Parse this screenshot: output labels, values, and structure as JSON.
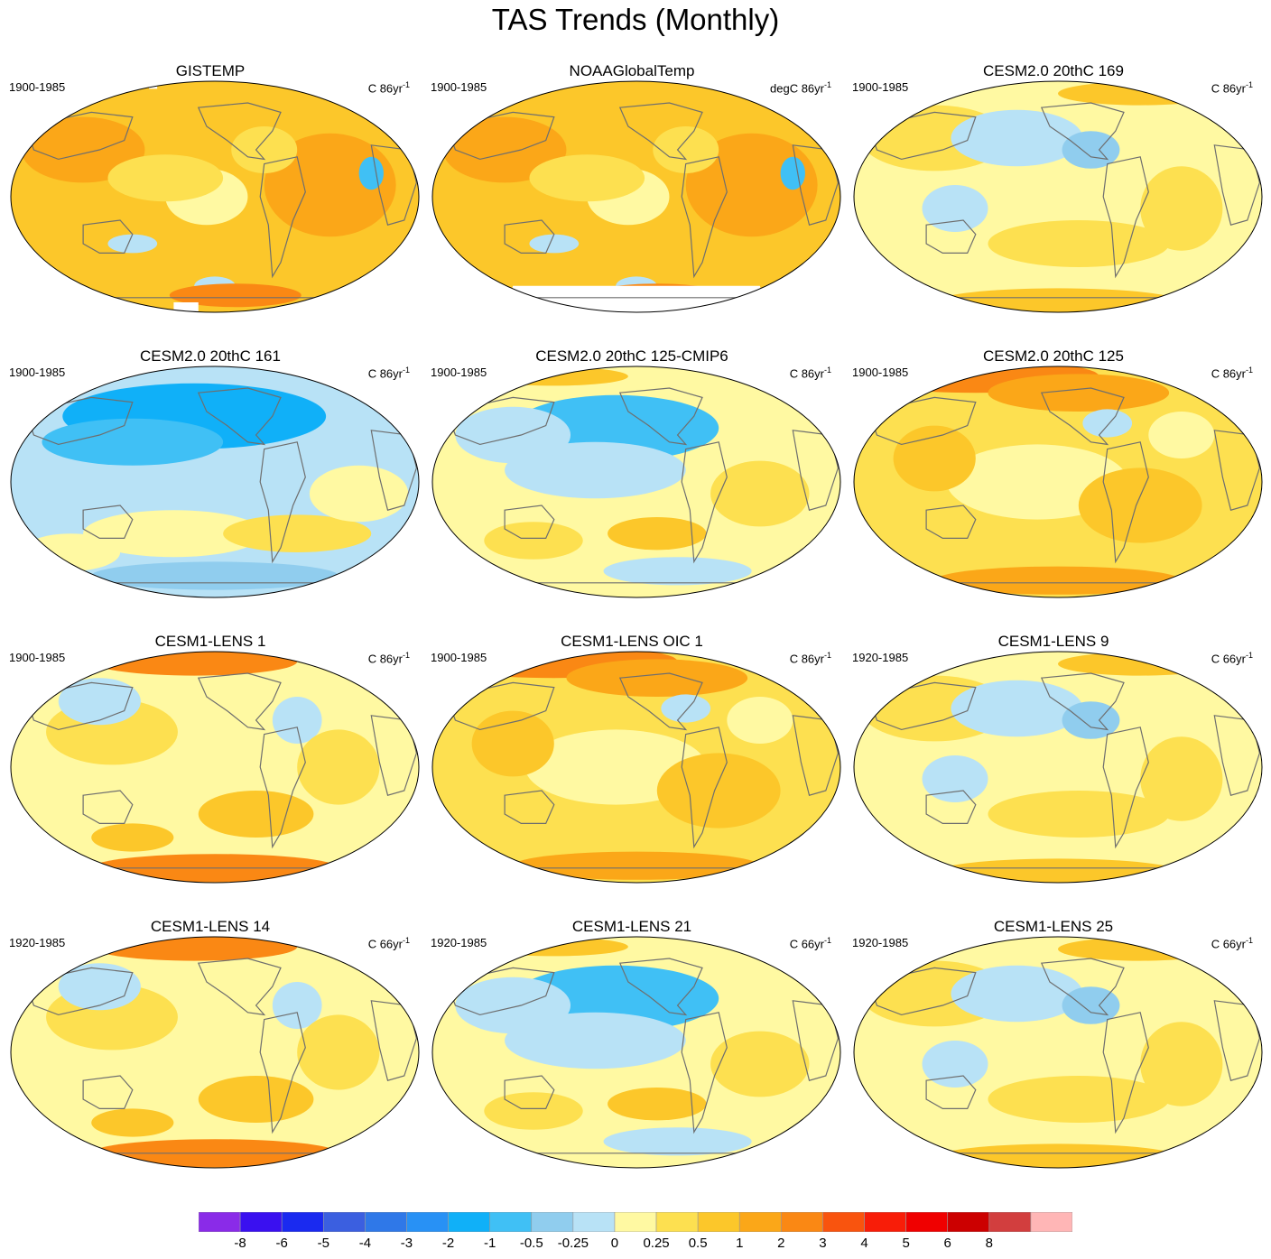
{
  "title": "TAS Trends (Monthly)",
  "panels": [
    {
      "title": "GISTEMP",
      "period": "1900-1985",
      "units_prefix": "C 86yr",
      "units_sup": "-1",
      "style": "obs_warm",
      "missing": "polar"
    },
    {
      "title": "NOAAGlobalTemp",
      "period": "1900-1985",
      "units_prefix": "degC 86yr",
      "units_sup": "-1",
      "style": "obs_warm",
      "missing": "south"
    },
    {
      "title": "CESM2.0 20thC 169",
      "period": "1900-1985",
      "units_prefix": "C 86yr",
      "units_sup": "-1",
      "style": "mixed_light",
      "missing": "none"
    },
    {
      "title": "CESM2.0 20thC 161",
      "period": "1900-1985",
      "units_prefix": "C 86yr",
      "units_sup": "-1",
      "style": "cool",
      "missing": "none"
    },
    {
      "title": "CESM2.0 20thC 125-CMIP6",
      "period": "1900-1985",
      "units_prefix": "C 86yr",
      "units_sup": "-1",
      "style": "mixed_cool",
      "missing": "none"
    },
    {
      "title": "CESM2.0 20thC 125",
      "period": "1900-1985",
      "units_prefix": "C 86yr",
      "units_sup": "-1",
      "style": "warm_north",
      "missing": "none"
    },
    {
      "title": "CESM1-LENS 1",
      "period": "1900-1985",
      "units_prefix": "C 86yr",
      "units_sup": "-1",
      "style": "mixed_warm",
      "missing": "none"
    },
    {
      "title": "CESM1-LENS OIC 1",
      "period": "1900-1985",
      "units_prefix": "C 86yr",
      "units_sup": "-1",
      "style": "warm_north",
      "missing": "none"
    },
    {
      "title": "CESM1-LENS 9",
      "period": "1920-1985",
      "units_prefix": "C 66yr",
      "units_sup": "-1",
      "style": "mixed_light",
      "missing": "none"
    },
    {
      "title": "CESM1-LENS 14",
      "period": "1920-1985",
      "units_prefix": "C 66yr",
      "units_sup": "-1",
      "style": "mixed_warm",
      "missing": "none"
    },
    {
      "title": "CESM1-LENS 21",
      "period": "1920-1985",
      "units_prefix": "C 66yr",
      "units_sup": "-1",
      "style": "mixed_cool",
      "missing": "none"
    },
    {
      "title": "CESM1-LENS 25",
      "period": "1920-1985",
      "units_prefix": "C 66yr",
      "units_sup": "-1",
      "style": "mixed_light",
      "missing": "none"
    }
  ],
  "colorbar": {
    "labels": [
      "-8",
      "-6",
      "-5",
      "-4",
      "-3",
      "-2",
      "-1",
      "-0.5",
      "-0.25",
      "0",
      "0.25",
      "0.5",
      "1",
      "2",
      "3",
      "4",
      "5",
      "6",
      "8"
    ],
    "colors": [
      "#8a2be8",
      "#3a10f0",
      "#1a2af0",
      "#3b5fe0",
      "#2f78e8",
      "#2891f5",
      "#10b0f8",
      "#40c0f5",
      "#90cdee",
      "#b8e2f6",
      "#fff9a2",
      "#fde050",
      "#fcc72a",
      "#fba718",
      "#fa8814",
      "#f9540e",
      "#f81d08",
      "#f00000",
      "#cc0000",
      "#d23e3e",
      "#ffb6b6"
    ]
  },
  "chart_data": {
    "type": "heatmap",
    "title": "TAS Trends (Monthly)",
    "projection": "Robinson (Pacific-centred global maps)",
    "layout": "4 rows x 3 columns of panels",
    "panels": [
      "GISTEMP",
      "NOAAGlobalTemp",
      "CESM2.0 20thC 169",
      "CESM2.0 20thC 161",
      "CESM2.0 20thC 125-CMIP6",
      "CESM2.0 20thC 125",
      "CESM1-LENS 1",
      "CESM1-LENS OIC 1",
      "CESM1-LENS 9",
      "CESM1-LENS 14",
      "CESM1-LENS 21",
      "CESM1-LENS 25"
    ],
    "levels": [
      -8,
      -6,
      -5,
      -4,
      -3,
      -2,
      -1,
      -0.5,
      -0.25,
      0,
      0.25,
      0.5,
      1,
      2,
      3,
      4,
      5,
      6,
      8
    ],
    "colorbar_labels": [
      "-8",
      "-6",
      "-5",
      "-4",
      "-3",
      "-2",
      "-1",
      "-0.5",
      "-0.25",
      "0",
      "0.25",
      "0.5",
      "1",
      "2",
      "3",
      "4",
      "5",
      "6",
      "8"
    ]
  }
}
